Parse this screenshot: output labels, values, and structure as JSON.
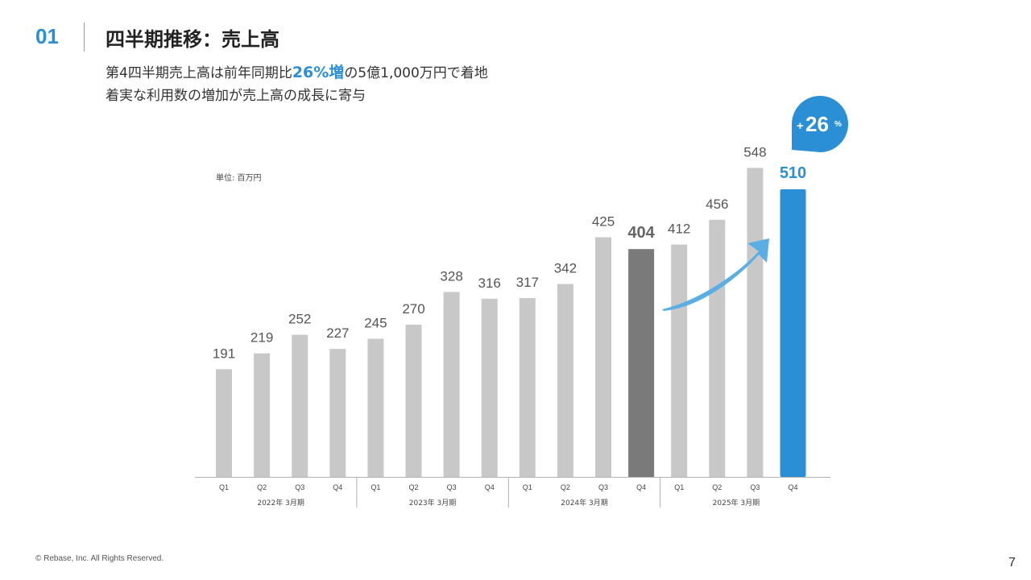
{
  "header": {
    "section_number": "01",
    "title": "四半期推移：売上高"
  },
  "subtitle": {
    "line1_prefix": "第4四半期売上高は前年同期比",
    "line1_highlight": "26%増",
    "line1_suffix": "の5億1,000万円で着地",
    "line2": "着実な利用数の増加が売上高の成長に寄与"
  },
  "unit_label": "単位: 百万円",
  "growth_badge": {
    "plus": "+",
    "value": "26",
    "percent": "%"
  },
  "colors": {
    "accent": "#2a8fd4",
    "bar_default": "#c8c8c8",
    "bar_prev_year_q4": "#7a7a7a",
    "bar_latest": "#2a8fd4",
    "arrow": "#5aaee3"
  },
  "chart_data": {
    "type": "bar",
    "categories": [
      "Q1",
      "Q2",
      "Q3",
      "Q4",
      "Q1",
      "Q2",
      "Q3",
      "Q4",
      "Q1",
      "Q2",
      "Q3",
      "Q4",
      "Q1",
      "Q2",
      "Q3",
      "Q4"
    ],
    "values": [
      191,
      219,
      252,
      227,
      245,
      270,
      328,
      316,
      317,
      342,
      425,
      404,
      412,
      456,
      548,
      510
    ],
    "value_labels": [
      "191",
      "219",
      "252",
      "227",
      "245",
      "270",
      "328",
      "316",
      "317",
      "342",
      "425",
      "404",
      "412",
      "456",
      "548",
      "510"
    ],
    "groups": [
      {
        "label": "2022年 3月期",
        "count": 4
      },
      {
        "label": "2023年 3月期",
        "count": 4
      },
      {
        "label": "2024年 3月期",
        "count": 4
      },
      {
        "label": "2025年 3月期",
        "count": 4
      }
    ],
    "highlight_gray_index": 11,
    "highlight_blue_index": 15,
    "ylim": [
      0,
      560
    ],
    "grid": false
  },
  "footer": {
    "copyright": "© Rebase, Inc. All Rights Reserved.",
    "page_number": "7"
  }
}
